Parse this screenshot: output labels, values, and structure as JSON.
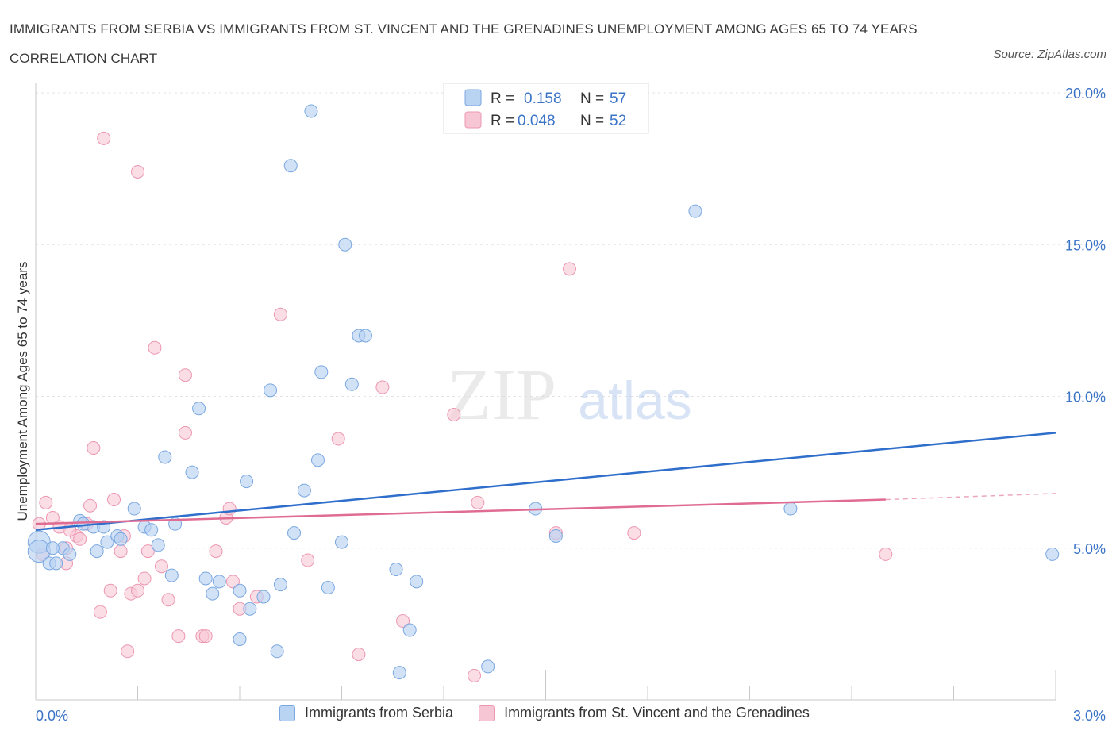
{
  "header": {
    "title": "IMMIGRANTS FROM SERBIA VS IMMIGRANTS FROM ST. VINCENT AND THE GRENADINES UNEMPLOYMENT AMONG AGES 65 TO 74 YEARS CORRELATION CHART",
    "source": "Source: ZipAtlas.com"
  },
  "watermark": {
    "zip": "ZIP",
    "atlas": "atlas"
  },
  "legend_top": {
    "rows": [
      {
        "r_label": "R =",
        "r_value": "0.158",
        "n_label": "N =",
        "n_value": "57"
      },
      {
        "r_label": "R =",
        "r_value": "0.048",
        "n_label": "N =",
        "n_value": "52"
      }
    ]
  },
  "legend_bottom": {
    "serbia": "Immigrants from Serbia",
    "stvincent": "Immigrants from St. Vincent and the Grenadines"
  },
  "colors": {
    "serbia_fill": "#b9d3f3",
    "serbia_stroke": "#7aa7e0",
    "serbia_line": "#2f6fcb",
    "stvincent_fill": "#f7c6d4",
    "stvincent_stroke": "#ec97b1",
    "stvincent_line": "#e06c94",
    "axis_text": "#3b74c7",
    "grid": "#e3e3e3"
  },
  "chart_data": {
    "type": "scatter",
    "title": "IMMIGRANTS FROM SERBIA VS IMMIGRANTS FROM ST. VINCENT AND THE GRENADINES UNEMPLOYMENT AMONG AGES 65 TO 74 YEARS CORRELATION CHART",
    "xlabel": "",
    "ylabel": "Unemployment Among Ages 65 to 74 years",
    "xlim": [
      0,
      3.0
    ],
    "ylim": [
      0,
      20
    ],
    "x_tick_labels": [
      "0.0%",
      "3.0%"
    ],
    "y_tick_labels": [
      "5.0%",
      "10.0%",
      "15.0%",
      "20.0%"
    ],
    "y_ticks": [
      5,
      10,
      15,
      20
    ],
    "grid": true,
    "legend_position": "top-center",
    "series": [
      {
        "name": "Immigrants from Serbia",
        "R": 0.158,
        "N": 57,
        "trend": {
          "x": [
            0.0,
            3.0
          ],
          "y": [
            5.6,
            8.8
          ]
        },
        "points": [
          [
            0.01,
            5.2
          ],
          [
            0.01,
            4.9
          ],
          [
            0.04,
            4.5
          ],
          [
            0.06,
            4.5
          ],
          [
            0.08,
            5.0
          ],
          [
            0.1,
            4.8
          ],
          [
            0.13,
            5.9
          ],
          [
            0.14,
            5.8
          ],
          [
            0.17,
            5.7
          ],
          [
            0.18,
            4.9
          ],
          [
            0.2,
            5.7
          ],
          [
            0.21,
            5.2
          ],
          [
            0.24,
            5.4
          ],
          [
            0.25,
            5.3
          ],
          [
            0.29,
            6.3
          ],
          [
            0.32,
            5.7
          ],
          [
            0.34,
            5.6
          ],
          [
            0.36,
            5.1
          ],
          [
            0.38,
            8.0
          ],
          [
            0.4,
            4.1
          ],
          [
            0.41,
            5.8
          ],
          [
            0.46,
            7.5
          ],
          [
            0.48,
            9.6
          ],
          [
            0.5,
            4.0
          ],
          [
            0.52,
            3.5
          ],
          [
            0.54,
            3.9
          ],
          [
            0.6,
            2.0
          ],
          [
            0.6,
            3.6
          ],
          [
            0.62,
            7.2
          ],
          [
            0.63,
            3.0
          ],
          [
            0.67,
            3.4
          ],
          [
            0.69,
            10.2
          ],
          [
            0.71,
            1.6
          ],
          [
            0.72,
            3.8
          ],
          [
            0.75,
            17.6
          ],
          [
            0.76,
            5.5
          ],
          [
            0.79,
            6.9
          ],
          [
            0.81,
            19.4
          ],
          [
            0.83,
            7.9
          ],
          [
            0.84,
            10.8
          ],
          [
            0.86,
            3.7
          ],
          [
            0.9,
            5.2
          ],
          [
            0.91,
            15.0
          ],
          [
            0.93,
            10.4
          ],
          [
            0.95,
            12.0
          ],
          [
            0.97,
            12.0
          ],
          [
            1.06,
            4.3
          ],
          [
            1.07,
            0.9
          ],
          [
            1.1,
            2.3
          ],
          [
            1.12,
            3.9
          ],
          [
            1.33,
            1.1
          ],
          [
            1.47,
            6.3
          ],
          [
            1.53,
            5.4
          ],
          [
            1.94,
            16.1
          ],
          [
            2.22,
            6.3
          ],
          [
            2.99,
            4.8
          ],
          [
            0.05,
            5.0
          ]
        ]
      },
      {
        "name": "Immigrants from St. Vincent and the Grenadines",
        "R": 0.048,
        "N": 52,
        "trend": {
          "x": [
            0.0,
            2.5
          ],
          "y": [
            5.8,
            6.6
          ]
        },
        "trend_dashed": {
          "x": [
            2.5,
            3.0
          ],
          "y": [
            6.6,
            6.8
          ]
        },
        "points": [
          [
            0.01,
            5.8
          ],
          [
            0.02,
            4.8
          ],
          [
            0.03,
            6.5
          ],
          [
            0.05,
            6.0
          ],
          [
            0.07,
            5.7
          ],
          [
            0.09,
            4.5
          ],
          [
            0.09,
            5.0
          ],
          [
            0.12,
            5.4
          ],
          [
            0.13,
            5.3
          ],
          [
            0.15,
            5.8
          ],
          [
            0.16,
            6.4
          ],
          [
            0.17,
            8.3
          ],
          [
            0.19,
            2.9
          ],
          [
            0.2,
            18.5
          ],
          [
            0.22,
            3.6
          ],
          [
            0.23,
            6.6
          ],
          [
            0.25,
            4.9
          ],
          [
            0.26,
            5.4
          ],
          [
            0.27,
            1.6
          ],
          [
            0.28,
            3.5
          ],
          [
            0.3,
            3.6
          ],
          [
            0.3,
            17.4
          ],
          [
            0.32,
            4.0
          ],
          [
            0.33,
            4.9
          ],
          [
            0.35,
            11.6
          ],
          [
            0.37,
            4.4
          ],
          [
            0.39,
            3.3
          ],
          [
            0.42,
            2.1
          ],
          [
            0.44,
            10.7
          ],
          [
            0.44,
            8.8
          ],
          [
            0.49,
            2.1
          ],
          [
            0.5,
            2.1
          ],
          [
            0.53,
            4.9
          ],
          [
            0.56,
            6.0
          ],
          [
            0.57,
            6.3
          ],
          [
            0.58,
            3.9
          ],
          [
            0.6,
            3.0
          ],
          [
            0.65,
            3.4
          ],
          [
            0.72,
            12.7
          ],
          [
            0.8,
            4.6
          ],
          [
            0.89,
            8.6
          ],
          [
            0.95,
            1.5
          ],
          [
            1.02,
            10.3
          ],
          [
            1.08,
            2.6
          ],
          [
            1.23,
            9.4
          ],
          [
            1.29,
            0.8
          ],
          [
            1.3,
            6.5
          ],
          [
            1.53,
            5.5
          ],
          [
            1.57,
            14.2
          ],
          [
            1.76,
            5.5
          ],
          [
            2.5,
            4.8
          ],
          [
            0.1,
            5.6
          ]
        ]
      }
    ]
  }
}
